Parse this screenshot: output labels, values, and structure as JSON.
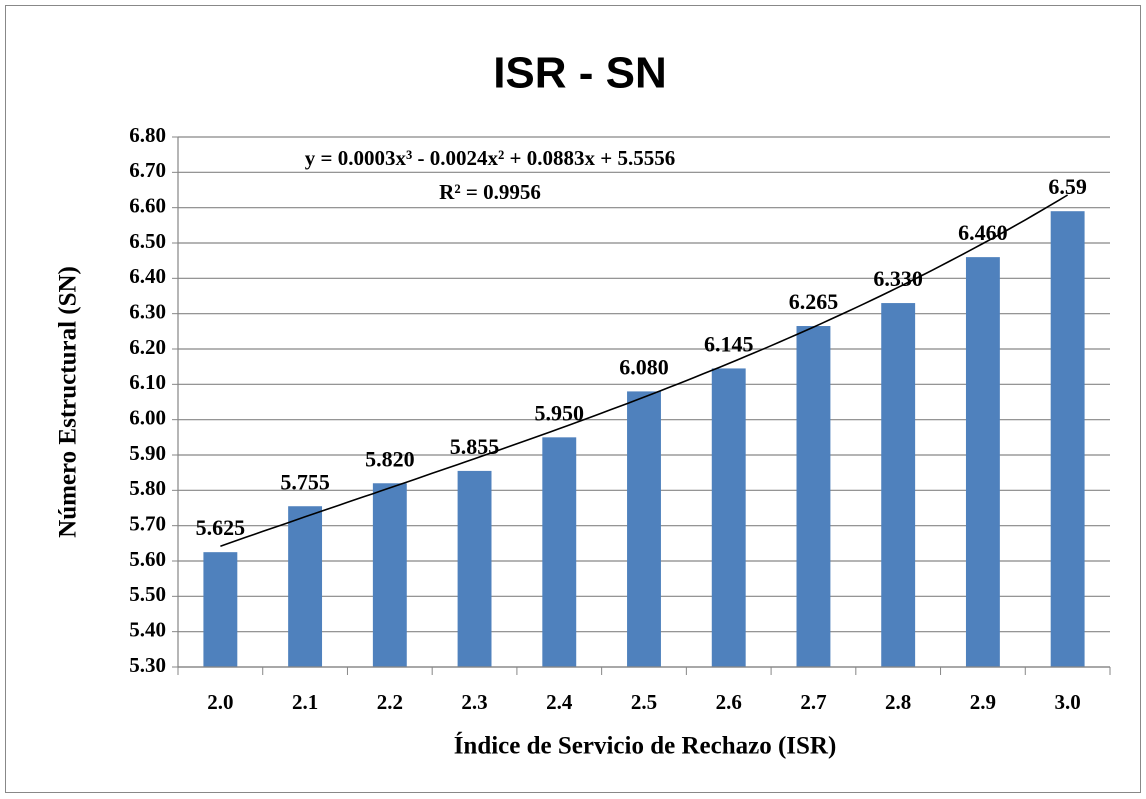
{
  "chart_data": {
    "type": "bar",
    "title": "ISR - SN",
    "x_label": "Índice de Servicio de Rechazo (ISR)",
    "y_label": "Número Estructural (SN)",
    "categories": [
      "2.0",
      "2.1",
      "2.2",
      "2.3",
      "2.4",
      "2.5",
      "2.6",
      "2.7",
      "2.8",
      "2.9",
      "3.0"
    ],
    "values": [
      5.625,
      5.755,
      5.82,
      5.855,
      5.95,
      6.08,
      6.145,
      6.265,
      6.33,
      6.46,
      6.59
    ],
    "value_labels": [
      "5.625",
      "5.755",
      "5.820",
      "5.855",
      "5.950",
      "6.080",
      "6.145",
      "6.265",
      "6.330",
      "6.460",
      "6.59"
    ],
    "color": "#4f81bd",
    "ylim": [
      5.3,
      6.8
    ],
    "yticks": [
      {
        "value": 5.3,
        "label": "5.30"
      },
      {
        "value": 5.4,
        "label": "5.40"
      },
      {
        "value": 5.5,
        "label": "5.50"
      },
      {
        "value": 5.6,
        "label": "5.60"
      },
      {
        "value": 5.7,
        "label": "5.70"
      },
      {
        "value": 5.8,
        "label": "5.80"
      },
      {
        "value": 5.9,
        "label": "5.90"
      },
      {
        "value": 6.0,
        "label": "6.00"
      },
      {
        "value": 6.1,
        "label": "6.10"
      },
      {
        "value": 6.2,
        "label": "6.20"
      },
      {
        "value": 6.3,
        "label": "6.30"
      },
      {
        "value": 6.4,
        "label": "6.40"
      },
      {
        "value": 6.5,
        "label": "6.50"
      },
      {
        "value": 6.6,
        "label": "6.60"
      },
      {
        "value": 6.7,
        "label": "6.70"
      },
      {
        "value": 6.8,
        "label": "6.80"
      }
    ],
    "grid": true,
    "trendline": {
      "equation": "y = 0.0003x³ - 0.0024x² + 0.0883x + 5.5556",
      "r_squared": "R² = 0.9956",
      "coefficients": [
        0.0003,
        -0.0024,
        0.0883,
        5.5556
      ]
    }
  }
}
